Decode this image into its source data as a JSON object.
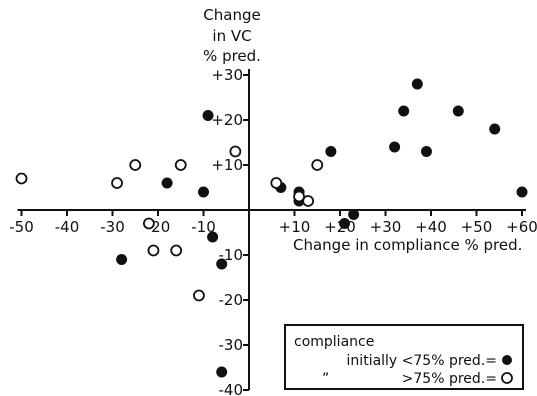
{
  "chart_data": {
    "type": "scatter",
    "ylabel_lines": [
      "Change",
      "in VC",
      "% pred."
    ],
    "xlabel": "Change in compliance % pred.",
    "xlim": [
      -50,
      60
    ],
    "ylim": [
      -40,
      30
    ],
    "x_ticks": [
      {
        "value": -50,
        "label": "-50"
      },
      {
        "value": -40,
        "label": "-40"
      },
      {
        "value": -30,
        "label": "-30"
      },
      {
        "value": -20,
        "label": "-20"
      },
      {
        "value": -10,
        "label": "-10"
      },
      {
        "value": 10,
        "label": "+10"
      },
      {
        "value": 20,
        "label": "+20"
      },
      {
        "value": 30,
        "label": "+30"
      },
      {
        "value": 40,
        "label": "+40"
      },
      {
        "value": 50,
        "label": "+50"
      },
      {
        "value": 60,
        "label": "+60"
      }
    ],
    "y_ticks": [
      {
        "value": 30,
        "label": "+30"
      },
      {
        "value": 20,
        "label": "+20"
      },
      {
        "value": 10,
        "label": "+10"
      },
      {
        "value": -10,
        "label": "-10"
      },
      {
        "value": -20,
        "label": "-20"
      },
      {
        "value": -30,
        "label": "-30"
      },
      {
        "value": -40,
        "label": "-40"
      }
    ],
    "series": [
      {
        "marker": "filled",
        "points": [
          {
            "x": -28,
            "y": -11
          },
          {
            "x": -18,
            "y": 6
          },
          {
            "x": -10,
            "y": 4
          },
          {
            "x": -9,
            "y": 21
          },
          {
            "x": -8,
            "y": -6
          },
          {
            "x": -6,
            "y": -12
          },
          {
            "x": -6,
            "y": -36
          },
          {
            "x": 7,
            "y": 5
          },
          {
            "x": 11,
            "y": 2
          },
          {
            "x": 11,
            "y": 4
          },
          {
            "x": 18,
            "y": 13
          },
          {
            "x": 21,
            "y": -3
          },
          {
            "x": 23,
            "y": -1
          },
          {
            "x": 32,
            "y": 14
          },
          {
            "x": 34,
            "y": 22
          },
          {
            "x": 37,
            "y": 28
          },
          {
            "x": 39,
            "y": 13
          },
          {
            "x": 46,
            "y": 22
          },
          {
            "x": 54,
            "y": 18
          },
          {
            "x": 60,
            "y": 4
          }
        ]
      },
      {
        "marker": "open",
        "points": [
          {
            "x": -50,
            "y": 7
          },
          {
            "x": -29,
            "y": 6
          },
          {
            "x": -25,
            "y": 10
          },
          {
            "x": -22,
            "y": -3
          },
          {
            "x": -21,
            "y": -9
          },
          {
            "x": -16,
            "y": -9
          },
          {
            "x": -15,
            "y": 10
          },
          {
            "x": -11,
            "y": -19
          },
          {
            "x": -3,
            "y": 13
          },
          {
            "x": 6,
            "y": 6
          },
          {
            "x": 11,
            "y": 3
          },
          {
            "x": 13,
            "y": 2
          },
          {
            "x": 15,
            "y": 10
          }
        ]
      }
    ],
    "legend": {
      "position": "bottom-right",
      "line1": "compliance",
      "line2": "initially <75% pred.=",
      "line3_ditto": "”",
      "line3": ">75% pred.="
    }
  }
}
